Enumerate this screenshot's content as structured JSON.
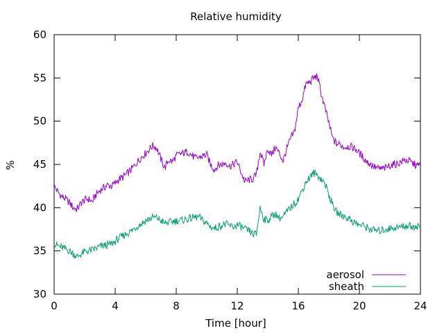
{
  "chart_data": {
    "type": "line",
    "title": "Relative humidity",
    "xlabel": "Time [hour]",
    "ylabel": "%",
    "xlim": [
      0,
      24
    ],
    "ylim": [
      30,
      60
    ],
    "xticks": [
      0,
      4,
      8,
      12,
      16,
      20,
      24
    ],
    "yticks": [
      30,
      35,
      40,
      45,
      50,
      55,
      60
    ],
    "grid": false,
    "legend_position": "bottom-right",
    "series": [
      {
        "name": "aerosol",
        "color": "#9400d3",
        "x": [
          0,
          0.25,
          0.5,
          0.75,
          1,
          1.25,
          1.5,
          1.75,
          2,
          2.25,
          2.5,
          2.75,
          3,
          3.25,
          3.5,
          3.75,
          4,
          4.25,
          4.5,
          4.75,
          5,
          5.25,
          5.5,
          5.75,
          6,
          6.25,
          6.5,
          6.75,
          7,
          7.25,
          7.5,
          7.75,
          8,
          8.25,
          8.5,
          8.75,
          9,
          9.25,
          9.5,
          9.75,
          10,
          10.25,
          10.5,
          10.75,
          11,
          11.25,
          11.5,
          11.75,
          12,
          12.25,
          12.5,
          12.75,
          13,
          13.25,
          13.5,
          13.75,
          14,
          14.25,
          14.5,
          14.75,
          15,
          15.25,
          15.5,
          15.75,
          16,
          16.25,
          16.5,
          16.75,
          17,
          17.25,
          17.5,
          17.75,
          18,
          18.25,
          18.5,
          18.75,
          19,
          19.25,
          19.5,
          19.75,
          20,
          20.25,
          20.5,
          20.75,
          21,
          21.25,
          21.5,
          21.75,
          22,
          22.25,
          22.5,
          22.75,
          23,
          23.25,
          23.5,
          23.75,
          24
        ],
        "values": [
          42.5,
          41.8,
          41.3,
          41.0,
          40.6,
          40.0,
          39.8,
          40.5,
          40.9,
          41.0,
          40.7,
          41.5,
          42.0,
          42.3,
          42.6,
          42.5,
          42.8,
          43.3,
          43.5,
          43.9,
          44.3,
          44.8,
          45.4,
          45.9,
          46.3,
          46.8,
          47.2,
          46.8,
          45.6,
          44.6,
          45.5,
          45.3,
          46.0,
          46.2,
          46.3,
          46.5,
          46.1,
          45.7,
          45.8,
          46.0,
          46.1,
          45.0,
          44.4,
          44.9,
          45.0,
          45.2,
          44.8,
          45.0,
          45.3,
          44.1,
          43.0,
          43.2,
          43.3,
          43.8,
          46.5,
          45.0,
          46.8,
          46.1,
          47.0,
          46.3,
          45.4,
          46.8,
          48.0,
          48.8,
          51.5,
          52.5,
          54.3,
          54.5,
          55.0,
          55.2,
          53.2,
          51.5,
          49.8,
          48.0,
          47.4,
          47.3,
          47.0,
          47.1,
          47.0,
          46.8,
          46.3,
          45.8,
          45.3,
          45.0,
          44.7,
          44.5,
          44.5,
          44.6,
          44.9,
          45.0,
          45.1,
          45.3,
          45.5,
          45.4,
          45.1,
          44.9,
          44.9
        ],
        "points": 97
      },
      {
        "name": "sheath",
        "color": "#009e73",
        "x": [
          0,
          0.25,
          0.5,
          0.75,
          1,
          1.25,
          1.5,
          1.75,
          2,
          2.25,
          2.5,
          2.75,
          3,
          3.25,
          3.5,
          3.75,
          4,
          4.25,
          4.5,
          4.75,
          5,
          5.25,
          5.5,
          5.75,
          6,
          6.25,
          6.5,
          6.75,
          7,
          7.25,
          7.5,
          7.75,
          8,
          8.25,
          8.5,
          8.75,
          9,
          9.25,
          9.5,
          9.75,
          10,
          10.25,
          10.5,
          10.75,
          11,
          11.25,
          11.5,
          11.75,
          12,
          12.25,
          12.5,
          12.75,
          13,
          13.25,
          13.5,
          13.75,
          14,
          14.25,
          14.5,
          14.75,
          15,
          15.25,
          15.5,
          15.75,
          16,
          16.25,
          16.5,
          16.75,
          17,
          17.25,
          17.5,
          17.75,
          18,
          18.25,
          18.5,
          18.75,
          19,
          19.25,
          19.5,
          19.75,
          20,
          20.25,
          20.5,
          20.75,
          21,
          21.25,
          21.5,
          21.75,
          22,
          22.25,
          22.5,
          22.75,
          23,
          23.25,
          23.5,
          23.75,
          24
        ],
        "values": [
          35.8,
          35.6,
          35.4,
          35.2,
          35.0,
          34.7,
          34.3,
          34.6,
          34.9,
          35.0,
          35.1,
          35.3,
          35.5,
          35.6,
          35.7,
          35.8,
          36.1,
          36.5,
          36.7,
          37.0,
          37.2,
          37.6,
          37.9,
          38.2,
          38.5,
          38.7,
          38.9,
          38.8,
          38.5,
          38.2,
          38.3,
          38.4,
          38.5,
          38.5,
          38.6,
          38.7,
          38.8,
          38.9,
          38.9,
          38.5,
          38.2,
          37.8,
          37.6,
          37.8,
          38.0,
          38.1,
          37.9,
          37.8,
          38.0,
          37.8,
          37.5,
          37.3,
          37.0,
          36.9,
          40.0,
          38.7,
          38.5,
          39.0,
          39.3,
          38.8,
          38.9,
          39.5,
          40.0,
          40.5,
          41.0,
          42.0,
          43.0,
          43.5,
          44.0,
          43.8,
          43.3,
          42.8,
          41.5,
          40.3,
          39.5,
          39.2,
          39.0,
          38.8,
          38.5,
          38.2,
          38.0,
          37.9,
          37.7,
          37.5,
          37.4,
          37.3,
          37.4,
          37.5,
          37.6,
          37.7,
          37.7,
          37.8,
          37.9,
          37.9,
          37.8,
          37.9,
          37.8
        ],
        "points": 97
      }
    ]
  }
}
